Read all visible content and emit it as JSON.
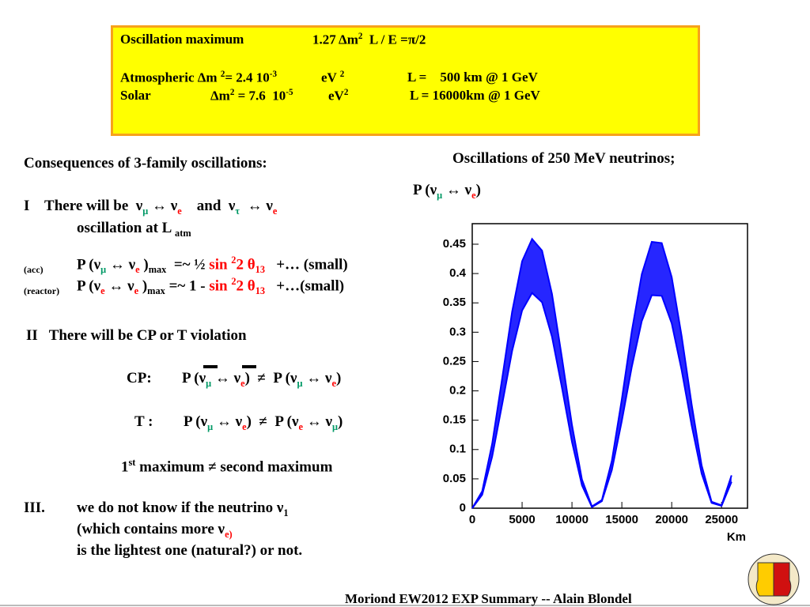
{
  "box": {
    "row0": [
      "Oscillation maximum",
      "1.27 Δm",
      "2",
      "  L / E =π/2"
    ],
    "row1": [
      "Atmospheric Δm ",
      "2",
      "= 2.4 10",
      "-3",
      "eV ",
      "2",
      "L =    500 km @ 1 GeV"
    ],
    "row2": [
      "Solar",
      "Δm",
      "2",
      " = 7.6  10",
      "-5",
      "eV",
      "2",
      "L = 16000km @ 1 GeV"
    ]
  },
  "left": {
    "heading": "Consequences of 3-family oscillations:",
    "i1": [
      "I    There will be  ν",
      "μ",
      " ↔ ν",
      "e",
      "    and  ν",
      "τ",
      "  ↔ ν",
      "e"
    ],
    "i2": [
      "oscillation at L ",
      "atm"
    ],
    "acc": [
      "(acc)",
      "P (ν",
      "μ",
      " ↔ ν",
      "e",
      " )",
      "max",
      "  =~ ½ ",
      "sin ",
      "2",
      "2 θ",
      "13",
      "   +… (small)"
    ],
    "reactor": [
      "(reactor)",
      "P (ν",
      "e",
      " ↔ ν",
      "e",
      " )",
      "max",
      " =~ 1 - ",
      "sin ",
      "2",
      "2 θ",
      "13",
      "   +…(small)"
    ],
    "ii": "II   There will be CP or T violation",
    "cp": [
      "CP:",
      "P (ν",
      "μ",
      " ↔ ν",
      "e",
      ")  ≠  P (ν",
      "μ",
      " ↔ ν",
      "e",
      ")"
    ],
    "t": [
      "T :",
      "P (ν",
      "μ",
      " ↔ ν",
      "e",
      ")  ≠  P (ν",
      "e",
      " ↔ ν",
      "μ",
      ")"
    ],
    "max": [
      "1",
      "st",
      " maximum ≠ second maximum"
    ],
    "iii1": [
      "III.",
      "we do not know if the neutrino ν",
      "1"
    ],
    "iii2": [
      "(which contains more ν",
      "e)"
    ],
    "iii3": "is the lightest one (natural?) or not."
  },
  "chart_data": {
    "type": "band",
    "title": "Oscillations of 250 MeV neutrinos;",
    "subtitle": [
      "P (ν",
      "μ",
      " ↔ ν",
      "e",
      ")"
    ],
    "xlabel": "Km",
    "x": [
      0,
      1000,
      2000,
      3000,
      4000,
      5000,
      6000,
      7000,
      8000,
      9000,
      10000,
      11000,
      12000,
      13000,
      14000,
      15000,
      16000,
      17000,
      18000,
      19000,
      20000,
      21000,
      22000,
      23000,
      24000,
      25000,
      26000
    ],
    "series": [
      {
        "color": "#0000ff",
        "values": [
          0,
          0.029,
          0.11,
          0.221,
          0.335,
          0.421,
          0.459,
          0.439,
          0.365,
          0.256,
          0.142,
          0.049,
          0.003,
          0.014,
          0.081,
          0.186,
          0.302,
          0.399,
          0.454,
          0.452,
          0.394,
          0.293,
          0.177,
          0.073,
          0.011,
          0.005,
          0.056
        ]
      },
      {
        "color": "#0000ff",
        "values": [
          0,
          0.023,
          0.088,
          0.177,
          0.268,
          0.337,
          0.367,
          0.351,
          0.292,
          0.205,
          0.113,
          0.039,
          0.002,
          0.012,
          0.065,
          0.149,
          0.241,
          0.319,
          0.363,
          0.362,
          0.315,
          0.235,
          0.141,
          0.059,
          0.009,
          0.004,
          0.045
        ]
      }
    ],
    "xlim": [
      0,
      27600
    ],
    "ylim": [
      0,
      0.485
    ],
    "xticks": [
      0,
      5000,
      10000,
      15000,
      20000,
      25000
    ],
    "yticks": [
      0,
      0.05,
      0.1,
      0.15,
      0.2,
      0.25,
      0.3,
      0.35,
      0.4,
      0.45
    ]
  },
  "footer": "Moriond EW2012 EXP Summary -- Alain Blondel"
}
